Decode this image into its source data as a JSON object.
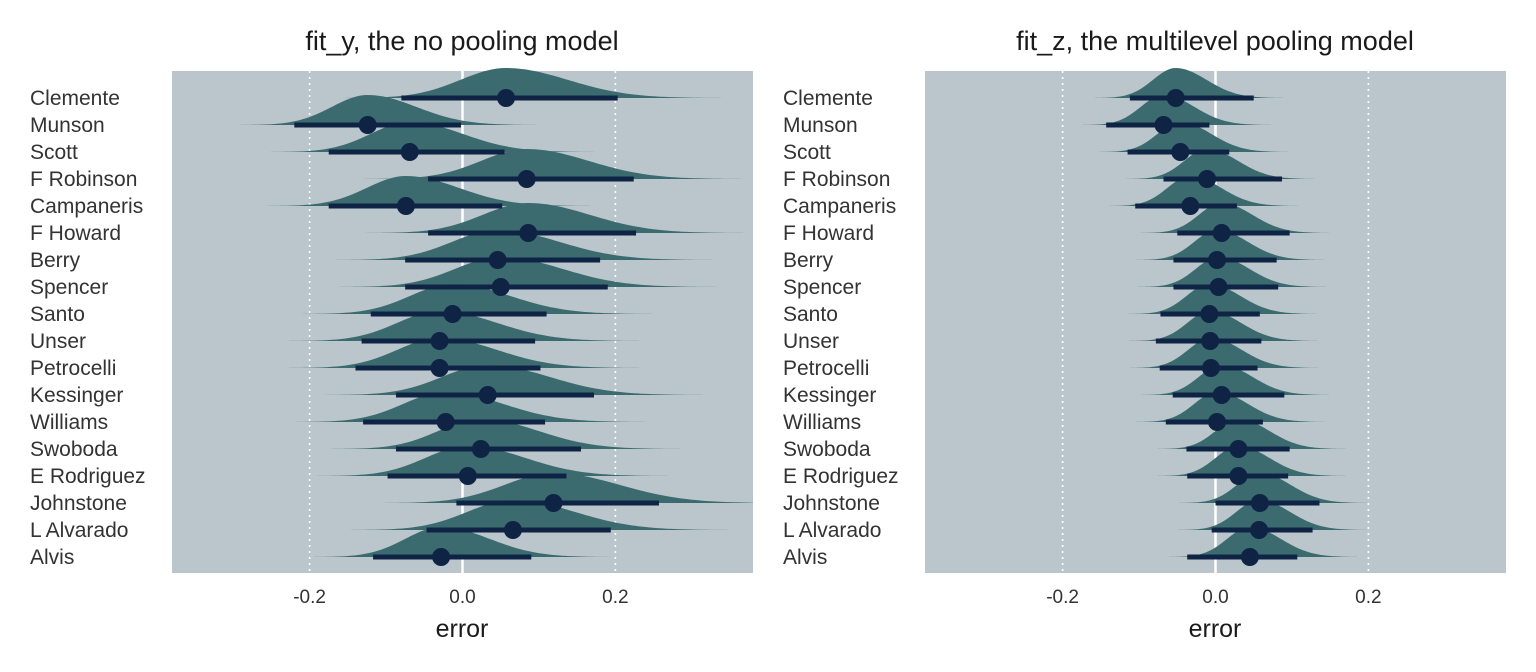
{
  "chart_data": [
    {
      "type": "halfeye",
      "title": "fit_y, the no pooling model",
      "xlabel": "error",
      "ylabel": "",
      "xlim": [
        -0.38,
        0.38
      ],
      "xticks": [
        -0.2,
        0.0,
        0.2
      ],
      "xtick_labels": [
        "-0.2",
        "0.0",
        "0.2"
      ],
      "grid": "vertical dotted",
      "reference_line": 0.0,
      "categories": [
        "Clemente",
        "Munson",
        "Scott",
        "F Robinson",
        "Campaneris",
        "F Howard",
        "Berry",
        "Spencer",
        "Santo",
        "Unser",
        "Petrocelli",
        "Kessinger",
        "Williams",
        "Swoboda",
        "E Rodriguez",
        "Johnstone",
        "L Alvarado",
        "Alvis"
      ],
      "points": [
        {
          "median": 0.057,
          "lo": -0.08,
          "hi": 0.203,
          "sd": 0.07
        },
        {
          "median": -0.124,
          "lo": -0.22,
          "hi": -0.002,
          "sd": 0.055
        },
        {
          "median": -0.069,
          "lo": -0.175,
          "hi": 0.055,
          "sd": 0.06
        },
        {
          "median": 0.084,
          "lo": -0.045,
          "hi": 0.224,
          "sd": 0.07
        },
        {
          "median": -0.074,
          "lo": -0.175,
          "hi": 0.052,
          "sd": 0.06
        },
        {
          "median": 0.086,
          "lo": -0.045,
          "hi": 0.227,
          "sd": 0.07
        },
        {
          "median": 0.046,
          "lo": -0.075,
          "hi": 0.18,
          "sd": 0.07
        },
        {
          "median": 0.05,
          "lo": -0.075,
          "hi": 0.19,
          "sd": 0.07
        },
        {
          "median": -0.013,
          "lo": -0.12,
          "hi": 0.11,
          "sd": 0.065
        },
        {
          "median": -0.03,
          "lo": -0.132,
          "hi": 0.095,
          "sd": 0.065
        },
        {
          "median": -0.03,
          "lo": -0.14,
          "hi": 0.102,
          "sd": 0.065
        },
        {
          "median": 0.033,
          "lo": -0.087,
          "hi": 0.172,
          "sd": 0.07
        },
        {
          "median": -0.022,
          "lo": -0.13,
          "hi": 0.108,
          "sd": 0.065
        },
        {
          "median": 0.024,
          "lo": -0.087,
          "hi": 0.155,
          "sd": 0.065
        },
        {
          "median": 0.007,
          "lo": -0.098,
          "hi": 0.136,
          "sd": 0.065
        },
        {
          "median": 0.119,
          "lo": -0.008,
          "hi": 0.257,
          "sd": 0.075
        },
        {
          "median": 0.066,
          "lo": -0.047,
          "hi": 0.194,
          "sd": 0.07
        },
        {
          "median": -0.028,
          "lo": -0.117,
          "hi": 0.09,
          "sd": 0.055
        }
      ]
    },
    {
      "type": "halfeye",
      "title": "fit_z, the multilevel pooling model",
      "xlabel": "error",
      "ylabel": "",
      "xlim": [
        -0.38,
        0.38
      ],
      "xticks": [
        -0.2,
        0.0,
        0.2
      ],
      "xtick_labels": [
        "-0.2",
        "0.0",
        "0.2"
      ],
      "grid": "vertical dotted",
      "reference_line": 0.0,
      "categories": [
        "Clemente",
        "Munson",
        "Scott",
        "F Robinson",
        "Campaneris",
        "F Howard",
        "Berry",
        "Spencer",
        "Santo",
        "Unser",
        "Petrocelli",
        "Kessinger",
        "Williams",
        "Swoboda",
        "E Rodriguez",
        "Johnstone",
        "L Alvarado",
        "Alvis"
      ],
      "points": [
        {
          "median": -0.052,
          "lo": -0.112,
          "hi": 0.05,
          "sd": 0.035
        },
        {
          "median": -0.068,
          "lo": -0.143,
          "hi": -0.008,
          "sd": 0.035
        },
        {
          "median": -0.046,
          "lo": -0.115,
          "hi": 0.018,
          "sd": 0.035
        },
        {
          "median": -0.011,
          "lo": -0.068,
          "hi": 0.087,
          "sd": 0.035
        },
        {
          "median": -0.033,
          "lo": -0.105,
          "hi": 0.028,
          "sd": 0.035
        },
        {
          "median": 0.008,
          "lo": -0.05,
          "hi": 0.097,
          "sd": 0.035
        },
        {
          "median": 0.002,
          "lo": -0.055,
          "hi": 0.08,
          "sd": 0.035
        },
        {
          "median": 0.004,
          "lo": -0.055,
          "hi": 0.082,
          "sd": 0.035
        },
        {
          "median": -0.008,
          "lo": -0.072,
          "hi": 0.058,
          "sd": 0.035
        },
        {
          "median": -0.007,
          "lo": -0.078,
          "hi": 0.06,
          "sd": 0.035
        },
        {
          "median": -0.006,
          "lo": -0.073,
          "hi": 0.055,
          "sd": 0.035
        },
        {
          "median": 0.008,
          "lo": -0.056,
          "hi": 0.09,
          "sd": 0.035
        },
        {
          "median": 0.002,
          "lo": -0.065,
          "hi": 0.062,
          "sd": 0.035
        },
        {
          "median": 0.03,
          "lo": -0.038,
          "hi": 0.097,
          "sd": 0.035
        },
        {
          "median": 0.03,
          "lo": -0.037,
          "hi": 0.095,
          "sd": 0.035
        },
        {
          "median": 0.058,
          "lo": 0.0,
          "hi": 0.136,
          "sd": 0.035
        },
        {
          "median": 0.057,
          "lo": -0.005,
          "hi": 0.127,
          "sd": 0.035
        },
        {
          "median": 0.045,
          "lo": -0.037,
          "hi": 0.107,
          "sd": 0.035
        }
      ]
    }
  ],
  "colors": {
    "panel_background": "#bac5cc",
    "density_fill": "#3b6b6f",
    "interval": "#0f2444",
    "reference_line": "#ffffff",
    "grid": "#ffffff"
  }
}
